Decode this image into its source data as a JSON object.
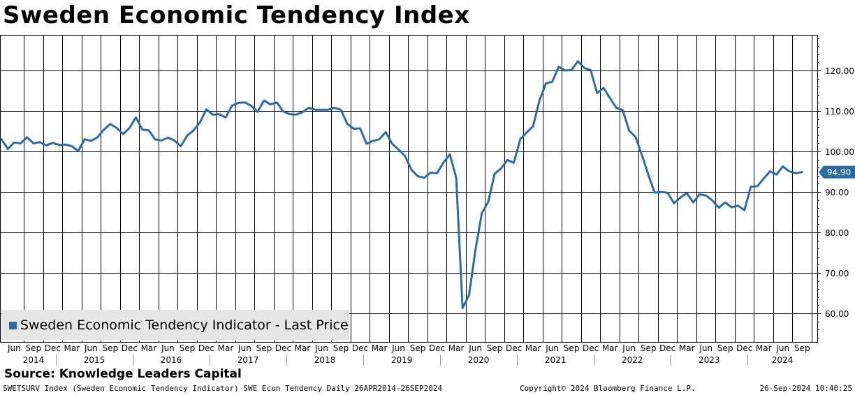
{
  "title": "Sweden Economic Tendency Index",
  "source": "Source: Knowledge Leaders Capital",
  "footer": {
    "left": "SWETSURV Index (Sweden Economic Tendency Indicator) SWE Econ Tendency  Daily 26APR2014-26SEP2024",
    "middle": "Copyright© 2024 Bloomberg Finance L.P.",
    "right": "26-Sep-2024 10:40:25"
  },
  "colors": {
    "line": "#2b6ca7",
    "grid": "#000000",
    "legend_bg": "#e6e6e6"
  },
  "chart_data": {
    "type": "line",
    "title": "Sweden Economic Tendency Index",
    "series": [
      {
        "name": "Sweden Economic Tendency Indicator - Last Price",
        "start": "2014-04",
        "frequency": "monthly",
        "values": [
          103.0,
          100.6,
          102.2,
          102.0,
          103.5,
          102.0,
          102.3,
          101.5,
          102.1,
          101.6,
          101.7,
          101.3,
          100.1,
          103.0,
          102.6,
          103.5,
          105.4,
          106.8,
          105.8,
          104.3,
          105.8,
          108.4,
          105.4,
          105.2,
          103.0,
          102.7,
          103.4,
          102.7,
          101.3,
          103.9,
          105.2,
          107.2,
          110.4,
          109.1,
          109.2,
          108.4,
          111.3,
          112.0,
          112.1,
          111.3,
          109.8,
          112.6,
          111.6,
          112.1,
          109.9,
          109.2,
          109.1,
          109.7,
          110.8,
          110.3,
          110.3,
          110.3,
          110.8,
          110.3,
          106.8,
          105.6,
          105.7,
          101.9,
          102.6,
          103.0,
          104.8,
          101.9,
          100.5,
          98.9,
          95.5,
          93.9,
          93.5,
          94.8,
          94.6,
          97.2,
          99.3,
          93.5,
          61.3,
          64.5,
          75.6,
          84.8,
          87.5,
          94.5,
          95.8,
          97.9,
          97.2,
          103.0,
          104.7,
          106.2,
          112.6,
          116.8,
          117.2,
          120.9,
          120.0,
          120.1,
          122.3,
          120.6,
          120.1,
          114.4,
          115.7,
          113.2,
          110.8,
          110.2,
          105.1,
          103.6,
          99.1,
          94.2,
          89.8,
          90.0,
          89.8,
          87.2,
          88.6,
          89.7,
          87.4,
          89.4,
          89.1,
          87.9,
          86.1,
          87.4,
          86.2,
          86.6,
          85.5,
          91.3,
          91.4,
          93.3,
          95.1,
          94.3,
          96.3,
          95.1,
          94.6,
          94.9
        ]
      }
    ],
    "last_value_label": "94.90",
    "y_ticks": [
      60,
      70,
      80,
      90,
      100,
      110,
      120
    ],
    "y_tick_labels": [
      "60.00",
      "70.00",
      "80.00",
      "90.00",
      "100.00",
      "110.00",
      "120.00"
    ],
    "ylim": [
      52.5,
      128.5
    ],
    "x_month_labels": [
      "Jun",
      "Sep",
      "Dec",
      "Mar",
      "Jun",
      "Sep",
      "Dec",
      "Mar",
      "Jun",
      "Sep",
      "Dec",
      "Mar",
      "Jun",
      "Sep",
      "Dec",
      "Mar",
      "Jun",
      "Sep",
      "Dec",
      "Mar",
      "Jun",
      "Sep",
      "Dec",
      "Mar",
      "Jun",
      "Sep",
      "Dec",
      "Mar",
      "Jun",
      "Sep",
      "Dec",
      "Mar",
      "Jun",
      "Sep",
      "Dec",
      "Mar",
      "Jun",
      "Sep",
      "Dec",
      "Mar",
      "Jun",
      "Sep"
    ],
    "x_year_labels": [
      "2014",
      "2015",
      "2016",
      "2017",
      "2018",
      "2019",
      "2020",
      "2021",
      "2022",
      "2023",
      "2024"
    ],
    "legend": "Sweden Economic Tendency Indicator - Last Price",
    "xlabel": "",
    "ylabel": ""
  }
}
